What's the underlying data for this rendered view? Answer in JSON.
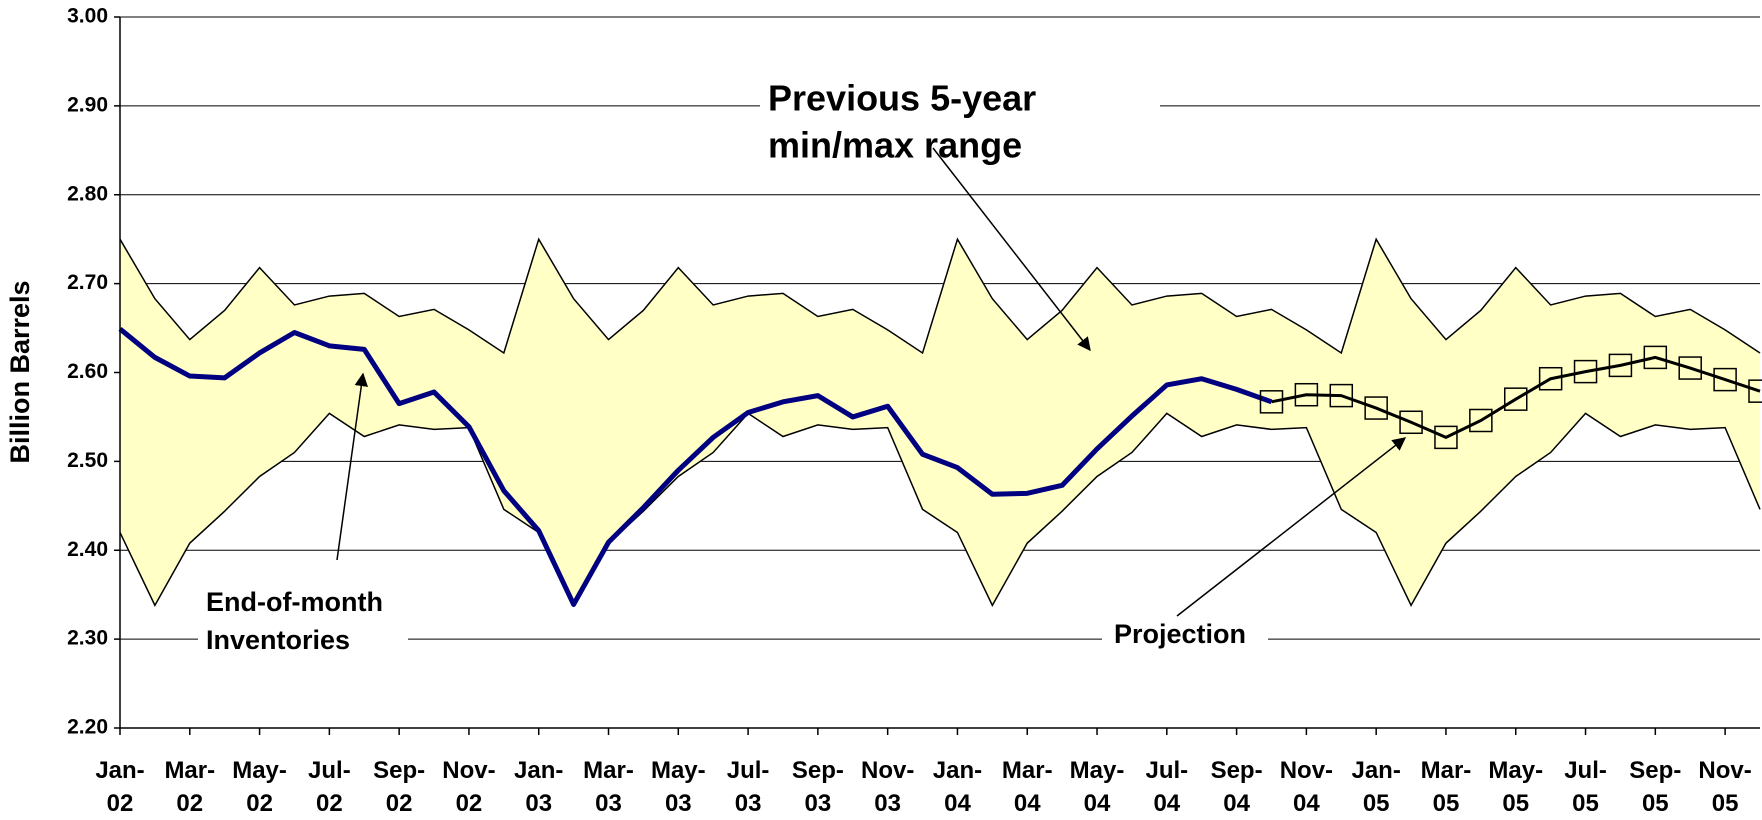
{
  "chart_data": {
    "type": "line",
    "y_label": "Billion Barrels",
    "categories": [
      "Jan-02",
      null,
      "Mar-02",
      null,
      "May-02",
      null,
      "Jul-02",
      null,
      "Sep-02",
      null,
      "Nov-02",
      null,
      "Jan-03",
      null,
      "Mar-03",
      null,
      "May-03",
      null,
      "Jul-03",
      null,
      "Sep-03",
      null,
      "Nov-03",
      null,
      "Jan-04",
      null,
      "Mar-04",
      null,
      "May-04",
      null,
      "Jul-04",
      null,
      "Sep-04",
      null,
      "Nov-04",
      null,
      "Jan-05",
      null,
      "Mar-05",
      null,
      "May-05",
      null,
      "Jul-05",
      null,
      "Sep-05",
      null,
      "Nov-05",
      null
    ],
    "ylim": [
      2.2,
      3.0
    ],
    "yticks": [
      {
        "value": 2.2,
        "label": "2.20"
      },
      {
        "value": 2.3,
        "label": "2.30"
      },
      {
        "value": 2.4,
        "label": "2.40"
      },
      {
        "value": 2.5,
        "label": "2.50"
      },
      {
        "value": 2.6,
        "label": "2.60"
      },
      {
        "value": 2.7,
        "label": "2.70"
      },
      {
        "value": 2.8,
        "label": "2.80"
      },
      {
        "value": 2.9,
        "label": "2.90"
      },
      {
        "value": 3.0,
        "label": "3.00"
      }
    ],
    "grid": true,
    "band": {
      "fill": "#ffffc6",
      "color": "#000000",
      "max": [
        2.75,
        2.683,
        2.637,
        2.67,
        2.718,
        2.676,
        2.686,
        2.689,
        2.663,
        2.671,
        2.648,
        2.622,
        2.75,
        2.683,
        2.637,
        2.67,
        2.718,
        2.676,
        2.686,
        2.689,
        2.663,
        2.671,
        2.648,
        2.622,
        2.75,
        2.683,
        2.637,
        2.67,
        2.718,
        2.676,
        2.686,
        2.689,
        2.663,
        2.671,
        2.648,
        2.622,
        2.75,
        2.683,
        2.637,
        2.67,
        2.718,
        2.676,
        2.686,
        2.689,
        2.663,
        2.671,
        2.648,
        2.622
      ],
      "min": [
        2.42,
        2.338,
        2.408,
        2.444,
        2.483,
        2.51,
        2.554,
        2.528,
        2.541,
        2.536,
        2.538,
        2.446,
        2.42,
        2.338,
        2.408,
        2.444,
        2.483,
        2.51,
        2.554,
        2.528,
        2.541,
        2.536,
        2.538,
        2.446,
        2.42,
        2.338,
        2.408,
        2.444,
        2.483,
        2.51,
        2.554,
        2.528,
        2.541,
        2.536,
        2.538,
        2.446,
        2.42,
        2.338,
        2.408,
        2.444,
        2.483,
        2.51,
        2.554,
        2.528,
        2.541,
        2.536,
        2.538,
        2.446
      ]
    },
    "series": [
      {
        "color": "#000080",
        "width": 5,
        "values": [
          2.649,
          2.617,
          2.596,
          2.594,
          2.622,
          2.645,
          2.63,
          2.626,
          2.565,
          2.578,
          2.539,
          2.467,
          2.422,
          2.339,
          2.409,
          2.448,
          2.49,
          2.527,
          2.555,
          2.567,
          2.574,
          2.55,
          2.562,
          2.508,
          2.493,
          2.463,
          2.464,
          2.473,
          2.514,
          2.551,
          2.586,
          2.593,
          2.581,
          2.567,
          null,
          null,
          null,
          null,
          null,
          null,
          null,
          null,
          null,
          null,
          null,
          null,
          null,
          null
        ]
      },
      {
        "color": "#000000",
        "width": 3,
        "marker": "square",
        "values": [
          null,
          null,
          null,
          null,
          null,
          null,
          null,
          null,
          null,
          null,
          null,
          null,
          null,
          null,
          null,
          null,
          null,
          null,
          null,
          null,
          null,
          null,
          null,
          null,
          null,
          null,
          null,
          null,
          null,
          null,
          null,
          null,
          null,
          2.567,
          2.575,
          2.574,
          2.56,
          2.544,
          2.527,
          2.546,
          2.57,
          2.593,
          2.601,
          2.608,
          2.617,
          2.605,
          2.592,
          2.579
        ]
      }
    ],
    "annotations": [
      {
        "lines": [
          "Previous 5-year",
          "min/max range"
        ]
      },
      {
        "lines": [
          "End-of-month",
          "Inventories"
        ]
      },
      {
        "lines": [
          "Projection"
        ]
      }
    ]
  }
}
